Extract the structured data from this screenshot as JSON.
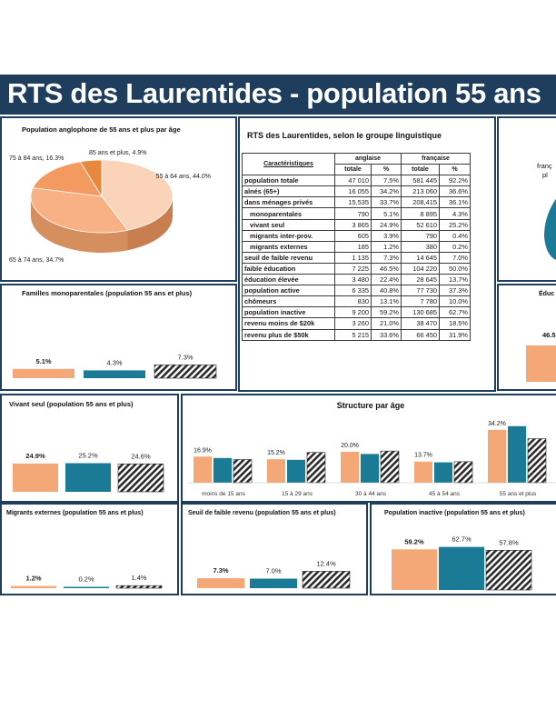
{
  "title": "RTS des Laurentides - population 55 ans",
  "colors": {
    "anglaise": "#f4a878",
    "francaise": "#1b7a95",
    "banner": "#1f3d5c",
    "hatch": "#2b2b2b"
  },
  "table": {
    "title": "RTS des Laurentides, selon le groupe linguistique",
    "col_header": "Caractéristiques",
    "groups": [
      "anglaise",
      "française"
    ],
    "subcols": [
      "totale",
      "%",
      "totale",
      "%"
    ],
    "rows": [
      {
        "label": "population totale",
        "ang_total": "47 010",
        "ang_pct": "7.5%",
        "fr_total": "581 445",
        "fr_pct": "92.2%"
      },
      {
        "label": "aînés (65+)",
        "ang_total": "16 055",
        "ang_pct": "34.2%",
        "fr_total": "213 060",
        "fr_pct": "36.6%"
      },
      {
        "label": "dans ménages privés",
        "ang_total": "15,535",
        "ang_pct": "33.7%",
        "fr_total": "208,415",
        "fr_pct": "36.1%"
      },
      {
        "label": "monoparentales",
        "ang_total": "790",
        "ang_pct": "5.1%",
        "fr_total": "8 895",
        "fr_pct": "4.3%"
      },
      {
        "label": "vivant seul",
        "ang_total": "3 865",
        "ang_pct": "24.9%",
        "fr_total": "52 610",
        "fr_pct": "25.2%"
      },
      {
        "label": "migrants inter-prov.",
        "ang_total": "605",
        "ang_pct": "3.9%",
        "fr_total": "790",
        "fr_pct": "0.4%"
      },
      {
        "label": "migrants externes",
        "ang_total": "185",
        "ang_pct": "1.2%",
        "fr_total": "380",
        "fr_pct": "0.2%"
      },
      {
        "label": "seuil de faible revenu",
        "ang_total": "1 135",
        "ang_pct": "7.3%",
        "fr_total": "14 645",
        "fr_pct": "7.0%"
      },
      {
        "label": "faible éducation",
        "ang_total": "7 225",
        "ang_pct": "46.5%",
        "fr_total": "104 220",
        "fr_pct": "50.0%"
      },
      {
        "label": "éducation élevée",
        "ang_total": "3 480",
        "ang_pct": "22.4%",
        "fr_total": "28 645",
        "fr_pct": "13.7%"
      },
      {
        "label": "population active",
        "ang_total": "6 335",
        "ang_pct": "40.8%",
        "fr_total": "77 730",
        "fr_pct": "37.3%"
      },
      {
        "label": "chômeurs",
        "ang_total": "830",
        "ang_pct": "13.1%",
        "fr_total": "7 780",
        "fr_pct": "10.0%"
      },
      {
        "label": "population inactive",
        "ang_total": "9 200",
        "ang_pct": "59.2%",
        "fr_total": "130 685",
        "fr_pct": "62.7%"
      },
      {
        "label": "revenu moins de $20k",
        "ang_total": "3 260",
        "ang_pct": "21.0%",
        "fr_total": "38 470",
        "fr_pct": "18.5%"
      },
      {
        "label": "revenu plus de $50k",
        "ang_total": "5 215",
        "ang_pct": "33.6%",
        "fr_total": "66 450",
        "fr_pct": "31.9%"
      }
    ]
  },
  "partial": {
    "francaise_pie_label": "franç",
    "francaise_pie_label2": "pl",
    "education_title": "Éduc",
    "education_value": "46.5"
  },
  "chart_data": [
    {
      "id": "pie",
      "type": "pie",
      "title": "Population anglophone de 55 ans et plus par âge",
      "slices": [
        {
          "name": "55 à 64 ans",
          "value": 44.0,
          "label": "55 à 64 ans, 44.0%",
          "color": "#fbd3b8"
        },
        {
          "name": "65 à 74 ans",
          "value": 34.7,
          "label": "65 à 74 ans, 34.7%",
          "color": "#f7b184"
        },
        {
          "name": "75 à 84 ans",
          "value": 16.3,
          "label": "75 à 84 ans, 16.3%",
          "color": "#f29a5f"
        },
        {
          "name": "85 ans et plus",
          "value": 4.9,
          "label": "85 ans et plus, 4.9%",
          "color": "#e8883f"
        }
      ]
    },
    {
      "id": "mono",
      "type": "bar",
      "title": "Familles monoparentales (population 55 ans et plus)",
      "values": [
        5.1,
        4.3,
        7.3
      ],
      "labels": [
        "5.1%",
        "4.3%",
        "7.3%"
      ],
      "ylim": [
        0,
        30
      ]
    },
    {
      "id": "seul",
      "type": "bar",
      "title": "Vivant seul (population 55 ans et plus)",
      "values": [
        24.9,
        25.2,
        24.6
      ],
      "labels": [
        "24.9%",
        "25.2%",
        "24.6%"
      ],
      "ylim": [
        0,
        60
      ]
    },
    {
      "id": "age",
      "type": "bar",
      "title": "Structure par âge",
      "categories": [
        "moins de 15 ans",
        "15 à 29 ans",
        "30 à 44 ans",
        "45 à 54 ans",
        "55 ans et plus"
      ],
      "series": [
        {
          "values": [
            16.9,
            15.2,
            20.0,
            13.7,
            34.2
          ],
          "labels": [
            "16.9%",
            "15.2%",
            "20.0%",
            "13.7%",
            "34.2%"
          ]
        },
        {
          "values": [
            16.0,
            14.8,
            18.6,
            13.2,
            36.6
          ]
        },
        {
          "values": [
            15.0,
            19.6,
            20.5,
            13.6,
            28.5
          ]
        }
      ],
      "ylim": [
        0,
        40
      ]
    },
    {
      "id": "migr",
      "type": "bar",
      "title": "Migrants externes (population 55 ans et plus)",
      "values": [
        1.2,
        0.2,
        1.4
      ],
      "labels": [
        "1.2%",
        "0.2%",
        "1.4%"
      ],
      "ylim": [
        0,
        30
      ]
    },
    {
      "id": "seuil",
      "type": "bar",
      "title": "Seuil de faible revenu (population 55 ans et plus)",
      "values": [
        7.3,
        7.0,
        12.4
      ],
      "labels": [
        "7.3%",
        "7.0%",
        "12.4%"
      ],
      "ylim": [
        0,
        40
      ]
    },
    {
      "id": "inact",
      "type": "bar",
      "title": "Population inactive (population 55 ans et plus)",
      "values": [
        59.2,
        62.7,
        57.8
      ],
      "labels": [
        "59.2%",
        "62.7%",
        "57.8%"
      ],
      "ylim": [
        0,
        90
      ]
    }
  ]
}
